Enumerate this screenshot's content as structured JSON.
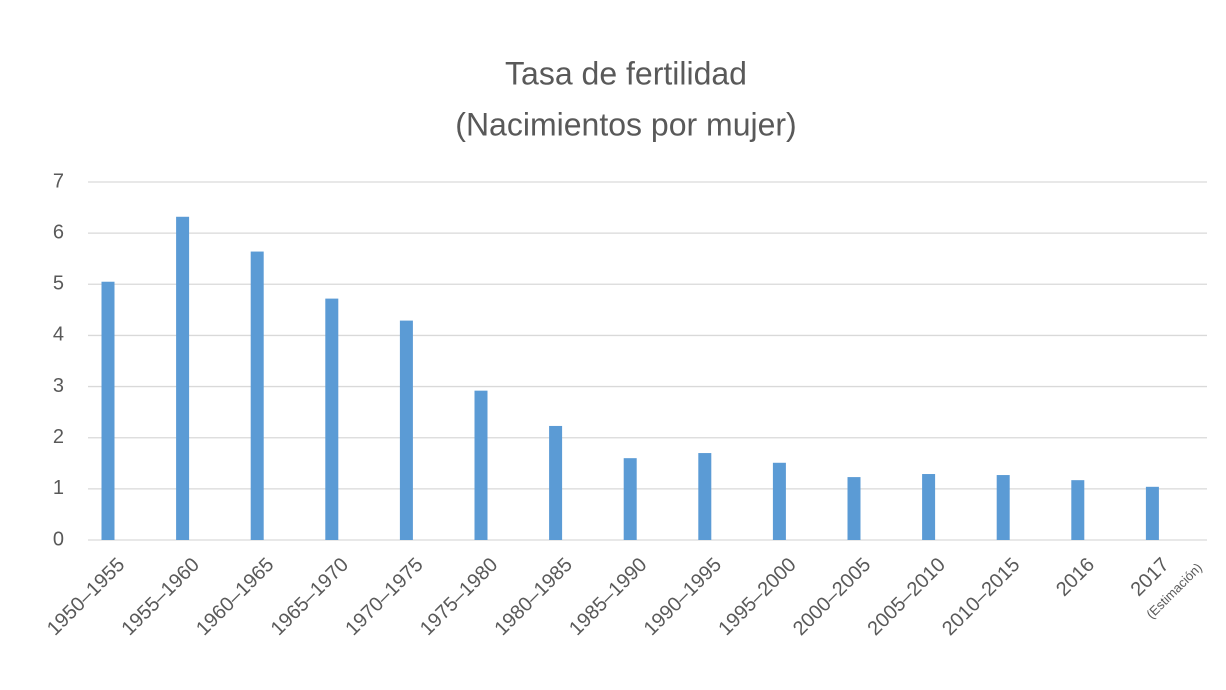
{
  "chart_data": {
    "type": "bar",
    "title": [
      "Tasa de fertilidad",
      "(Nacimientos por mujer)"
    ],
    "categories": [
      "1950–1955",
      "1955–1960",
      "1960–1965",
      "1965–1970",
      "1970–1975",
      "1975–1980",
      "1980–1985",
      "1985–1990",
      "1990–1995",
      "1995–2000",
      "2000–2005",
      "2005–2010",
      "2010–2015",
      "2016",
      "2017"
    ],
    "annotations": [
      "(Estimación)"
    ],
    "values": [
      5.05,
      6.32,
      5.64,
      4.72,
      4.29,
      2.92,
      2.23,
      1.6,
      1.7,
      1.51,
      1.23,
      1.29,
      1.27,
      1.17,
      1.04
    ],
    "color": "#5b9bd5",
    "ylim": [
      0,
      7
    ],
    "yticks": [
      0,
      1,
      2,
      3,
      4,
      5,
      6,
      7
    ],
    "grid": true
  }
}
